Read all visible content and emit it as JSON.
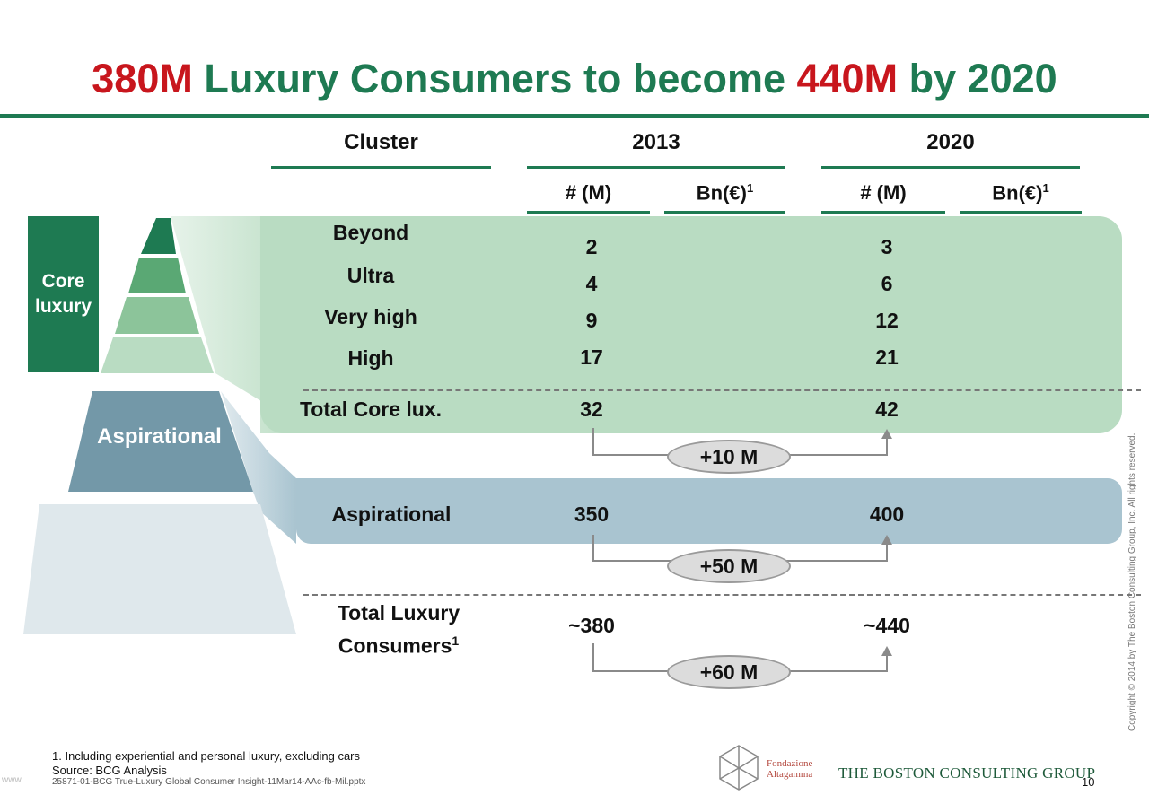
{
  "title": {
    "part1": "380M",
    "part2": " Luxury Consumers to become ",
    "part3": "440M",
    "part4": " by 2020"
  },
  "header": {
    "cluster": "Cluster",
    "year1": "2013",
    "year2": "2020",
    "col_num": "# (M)",
    "col_bn": "Bn(€)",
    "col_bn_sup": "1"
  },
  "sidebar": {
    "core": "Core luxury",
    "aspirational": "Aspirational"
  },
  "core_rows": [
    {
      "label": "Beyond",
      "v2013": "2",
      "v2020": "3"
    },
    {
      "label": "Ultra",
      "v2013": "4",
      "v2020": "6"
    },
    {
      "label": "Very high",
      "v2013": "9",
      "v2020": "12"
    },
    {
      "label": "High",
      "v2013": "17",
      "v2020": "21"
    }
  ],
  "total_core": {
    "label": "Total Core lux.",
    "v2013": "32",
    "v2020": "42",
    "delta": "+10 M"
  },
  "aspirational": {
    "label": "Aspirational",
    "v2013": "350",
    "v2020": "400",
    "delta": "+50 M"
  },
  "total_luxury": {
    "label_line1": "Total Luxury",
    "label_line2": "Consumers",
    "label_sup": "1",
    "v2013": "~380",
    "v2020": "~440",
    "delta": "+60 M"
  },
  "footnote": "1. Including experiential and personal luxury, excluding cars",
  "source": "Source: BCG Analysis",
  "file": "25871-01-BCG True-Luxury Global Consumer Insight-11Mar14-AAc-fb-Mil.pptx",
  "watermark": "www.",
  "copyright": "Copyright © 2014 by The Boston Consulting Group, Inc. All rights reserved.",
  "logos": {
    "fondazione_line1": "Fondazione",
    "fondazione_line2": "Altagamma",
    "bcg": "THE BOSTON CONSULTING GROUP"
  },
  "page_number": "10",
  "colors": {
    "green": "#1e7a52",
    "red": "#c8161d",
    "core_band": "#b9dcc2",
    "asp_band": "#a9c4d0"
  }
}
